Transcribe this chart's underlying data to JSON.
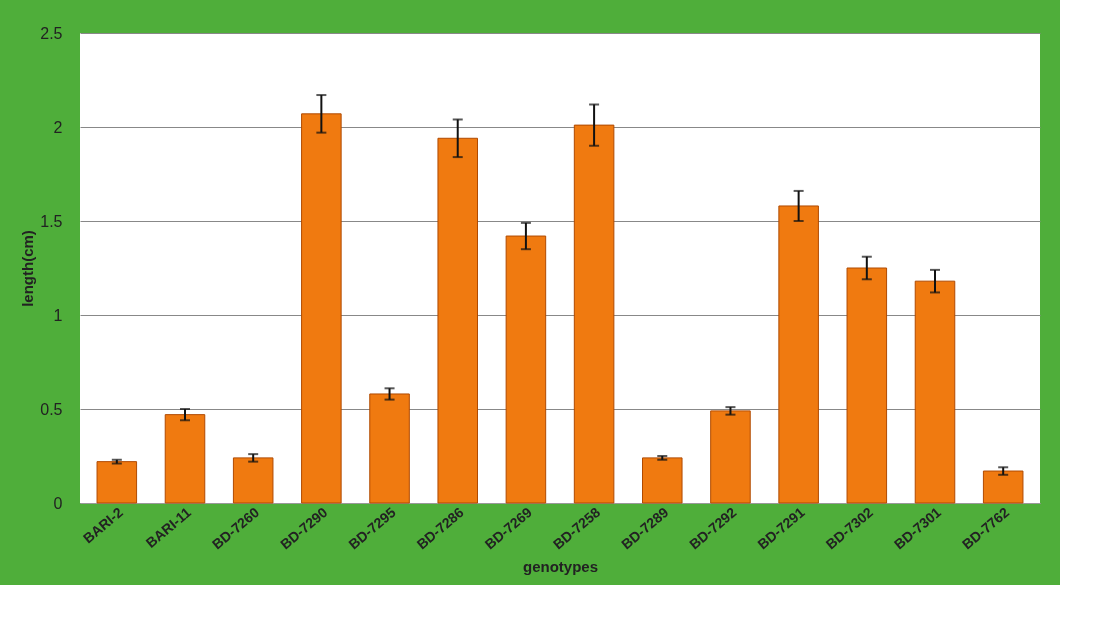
{
  "chart_data": {
    "type": "bar",
    "xlabel": "genotypes",
    "ylabel": "length(cm)",
    "categories": [
      "BARI-2",
      "BARI-11",
      "BD-7260",
      "BD-7290",
      "BD-7295",
      "BD-7286",
      "BD-7269",
      "BD-7258",
      "BD-7289",
      "BD-7292",
      "BD-7291",
      "BD-7302",
      "BD-7301",
      "BD-7762"
    ],
    "values": [
      0.22,
      0.47,
      0.24,
      2.07,
      0.58,
      1.94,
      1.42,
      2.01,
      0.24,
      0.49,
      1.58,
      1.25,
      1.18,
      0.17
    ],
    "errors": [
      0.01,
      0.03,
      0.02,
      0.1,
      0.03,
      0.1,
      0.07,
      0.11,
      0.01,
      0.02,
      0.08,
      0.06,
      0.06,
      0.02
    ],
    "color": "#f07a10",
    "ylim": [
      0,
      2.5
    ],
    "yticks": [
      0,
      0.5,
      1,
      1.5,
      2,
      2.5
    ],
    "grid": "y"
  }
}
